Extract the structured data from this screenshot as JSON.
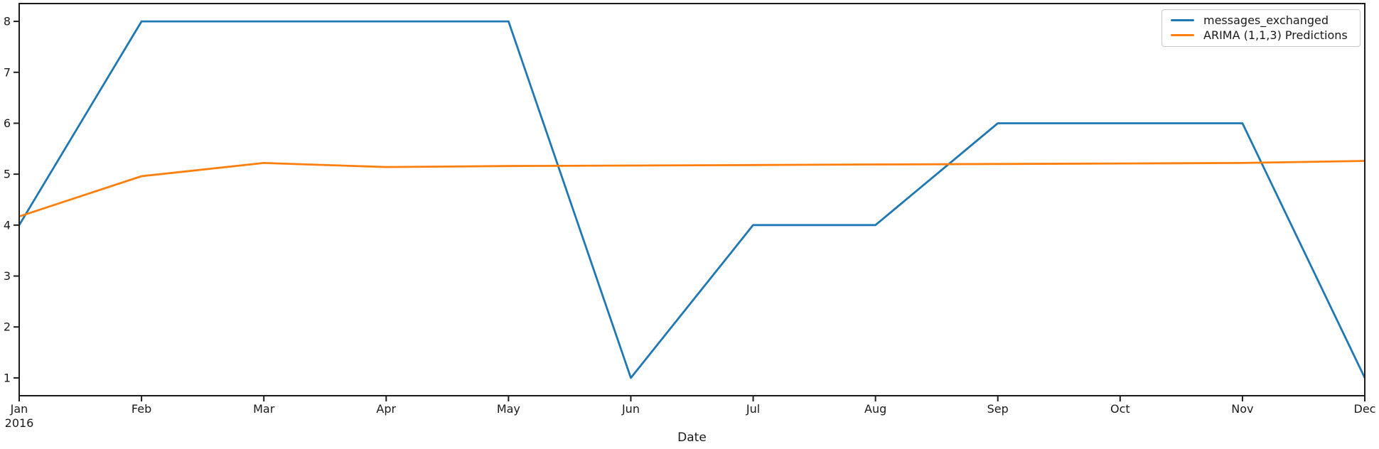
{
  "figure": {
    "background": "#ffffff",
    "spine_color": "#1c1c1c",
    "tick_label_color": "#1a1a1a"
  },
  "chart_data": {
    "type": "line",
    "title": "",
    "xlabel": "Date",
    "ylabel": "",
    "categories": [
      "Jan",
      "Feb",
      "Mar",
      "Apr",
      "May",
      "Jun",
      "Jul",
      "Aug",
      "Sep",
      "Oct",
      "Nov",
      "Dec"
    ],
    "x_year_label": "2016",
    "yticks": [
      1,
      2,
      3,
      4,
      5,
      6,
      7,
      8
    ],
    "ylim": [
      0.65,
      8.35
    ],
    "grid": false,
    "legend_position": "upper right",
    "series": [
      {
        "name": "messages_exchanged",
        "color": "#1f77b4",
        "values": [
          4,
          8,
          8,
          8,
          8,
          1,
          4,
          4,
          6,
          6,
          6,
          1
        ]
      },
      {
        "name": "ARIMA (1,1,3) Predictions",
        "color": "#ff7f0e",
        "values": [
          4.17,
          4.96,
          5.22,
          5.14,
          5.16,
          5.17,
          5.18,
          5.19,
          5.2,
          5.21,
          5.22,
          5.26
        ]
      }
    ]
  }
}
